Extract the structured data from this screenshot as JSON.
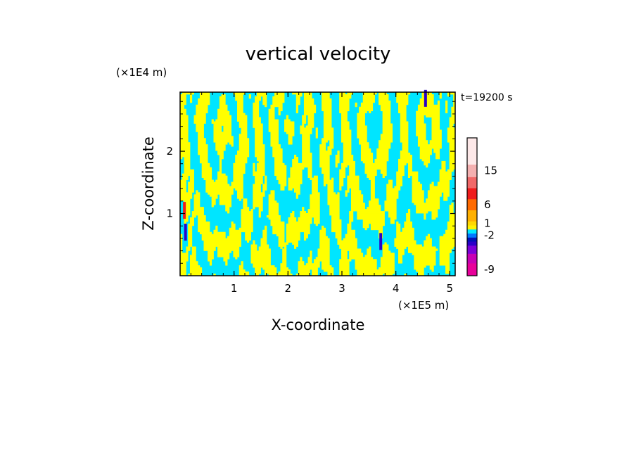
{
  "chart_data": {
    "type": "heatmap",
    "title": "vertical velocity",
    "xlabel": "X-coordinate",
    "ylabel": "Z-coordinate",
    "x_unit": "(×1E5 m)",
    "y_unit": "(×1E4 m)",
    "time_label": "t=19200 s",
    "xlim": [
      0,
      5.1
    ],
    "ylim": [
      0,
      2.95
    ],
    "x_ticks": [
      1,
      2,
      3,
      4,
      5
    ],
    "y_ticks": [
      1,
      2
    ],
    "grid": false,
    "legend_position": "right",
    "colorbar": {
      "levels": [
        {
          "label": "-9",
          "color": "#e8009a"
        },
        {
          "label": "",
          "color": "#c800b4"
        },
        {
          "label": "",
          "color": "#7c00d8"
        },
        {
          "label": "",
          "color": "#2a00c8"
        },
        {
          "label": "",
          "color": "#0010b8"
        },
        {
          "label": "-2",
          "color": "#0078ff"
        },
        {
          "label": "",
          "color": "#00e8ff"
        },
        {
          "label": "",
          "color": "#fff200"
        },
        {
          "label": "1",
          "color": "#ffd800"
        },
        {
          "label": "",
          "color": "#ffb000"
        },
        {
          "label": "6",
          "color": "#ff6a00"
        },
        {
          "label": "",
          "color": "#ef1c1c"
        },
        {
          "label": "",
          "color": "#f06868"
        },
        {
          "label": "15",
          "color": "#f4b0b0"
        },
        {
          "label": "",
          "color": "#fde8e8"
        }
      ]
    },
    "field_colors": {
      "positive": "#ffff00",
      "negative": "#00e5ff",
      "strong_negative": "#2a00c8",
      "strong_positive": "#ef1c1c"
    }
  }
}
